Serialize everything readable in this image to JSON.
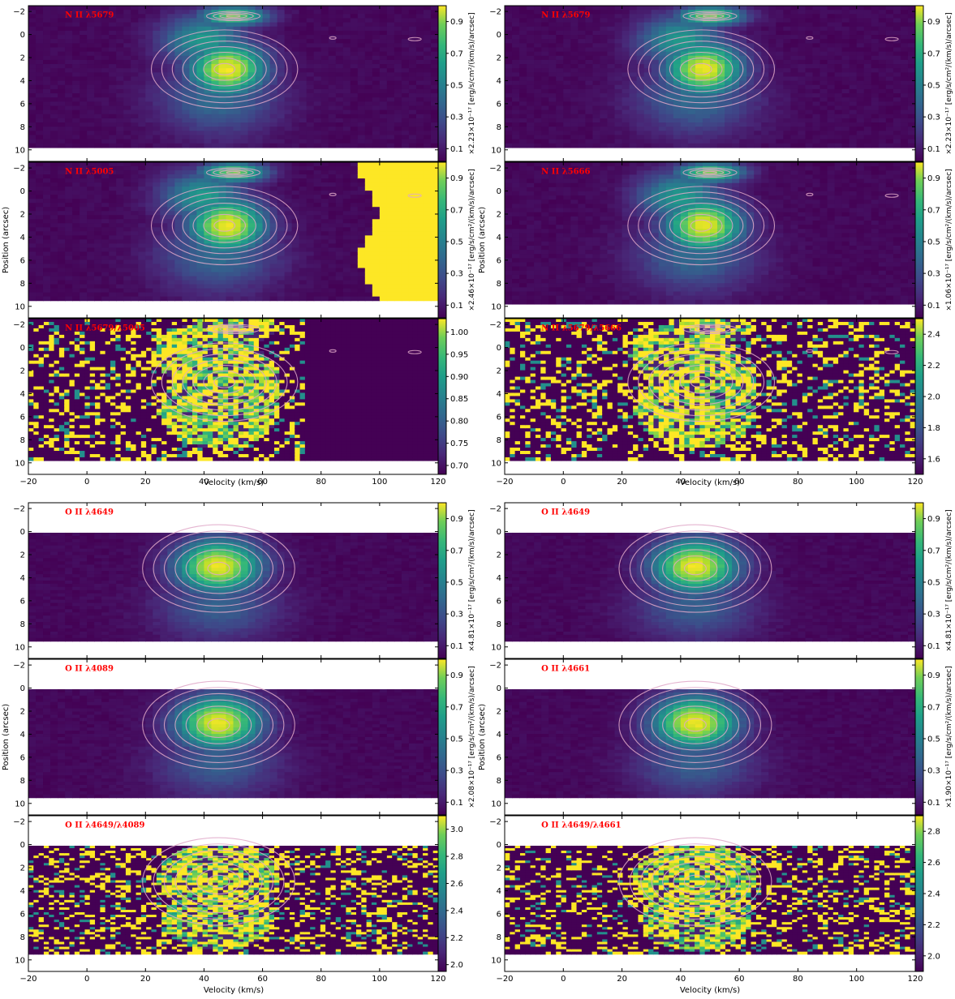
{
  "figure": {
    "velocity_label": "Velocity (km/s)",
    "position_label": "Position (arcsec)",
    "x_ticks": [
      "-20",
      "0",
      "20",
      "40",
      "60",
      "80",
      "100",
      "120"
    ],
    "y_ticks": [
      "-2",
      "0",
      "2",
      "4",
      "6",
      "8",
      "10"
    ]
  },
  "colors": {
    "viridis_low": "#440154",
    "viridis_mid": "#21918c",
    "viridis_high": "#fde725",
    "contour": "#e0a8c8",
    "label_red": "#ff0000"
  },
  "chart_data": [
    {
      "type": "heatmap",
      "line_label": "N II λ5679",
      "xlim": [
        -20,
        120
      ],
      "ylim": [
        -2.5,
        11
      ],
      "data_rows": [
        -2.5,
        9.8
      ],
      "cbar_label": "×2.23×10⁻¹⁷ [erg/s/cm²/(km/s)/arcsec]",
      "cbar_ticks": [
        "0.1",
        "0.3",
        "0.5",
        "0.7",
        "0.9"
      ],
      "cbar_range": [
        0.02,
        1.0
      ],
      "peaks": [
        {
          "v": 48,
          "p": 3.0,
          "value": 1.0
        },
        {
          "v": 50,
          "p": -1.6,
          "value": 0.8
        }
      ]
    },
    {
      "type": "heatmap",
      "line_label": "N II λ5679",
      "xlim": [
        -20,
        120
      ],
      "ylim": [
        -2.5,
        11
      ],
      "data_rows": [
        -2.5,
        9.8
      ],
      "cbar_label": "×2.23×10⁻¹⁷ [erg/s/cm²/(km/s)/arcsec]",
      "cbar_ticks": [
        "0.1",
        "0.3",
        "0.5",
        "0.7",
        "0.9"
      ],
      "cbar_range": [
        0.02,
        1.0
      ],
      "peaks": [
        {
          "v": 48,
          "p": 3.0,
          "value": 1.0
        },
        {
          "v": 50,
          "p": -1.6,
          "value": 0.8
        }
      ]
    },
    {
      "type": "heatmap",
      "line_label": "N II λ5005",
      "xlim": [
        -20,
        120
      ],
      "ylim": [
        -2.5,
        11
      ],
      "data_rows": [
        -2.5,
        9.5
      ],
      "cbar_label": "×2.46×10⁻¹⁷ [erg/s/cm²/(km/s)/arcsec]",
      "cbar_ticks": [
        "0.1",
        "0.3",
        "0.5",
        "0.7",
        "0.9"
      ],
      "cbar_range": [
        0.02,
        1.0
      ],
      "peaks": [
        {
          "v": 48,
          "p": 3.0,
          "value": 1.0
        },
        {
          "v": 50,
          "p": -1.6,
          "value": 0.8
        }
      ]
    },
    {
      "type": "heatmap",
      "line_label": "N II λ5666",
      "xlim": [
        -20,
        120
      ],
      "ylim": [
        -2.5,
        11
      ],
      "data_rows": [
        -2.5,
        9.8
      ],
      "cbar_label": "×1.06×10⁻¹⁷ [erg/s/cm²/(km/s)/arcsec]",
      "cbar_ticks": [
        "0.1",
        "0.3",
        "0.5",
        "0.7",
        "0.9"
      ],
      "cbar_range": [
        0.02,
        1.0
      ],
      "peaks": [
        {
          "v": 48,
          "p": 3.0,
          "value": 1.0
        },
        {
          "v": 50,
          "p": -1.6,
          "value": 0.8
        }
      ]
    },
    {
      "type": "heatmap",
      "line_label": "N II λ5679/λ5005",
      "xlim": [
        -20,
        120
      ],
      "ylim": [
        -2.5,
        11
      ],
      "data_rows": [
        -2.5,
        9.8
      ],
      "cbar_label": "",
      "cbar_ticks": [
        "0.70",
        "0.75",
        "0.80",
        "0.85",
        "0.90",
        "0.95",
        "1.00"
      ],
      "cbar_range": [
        0.68,
        1.03
      ],
      "ratio_extent": [
        -20,
        74
      ]
    },
    {
      "type": "heatmap",
      "line_label": "N II λ5679/λ5666",
      "xlim": [
        -20,
        120
      ],
      "ylim": [
        -2.5,
        11
      ],
      "data_rows": [
        -2.5,
        9.8
      ],
      "cbar_label": "",
      "cbar_ticks": [
        "1.6",
        "1.8",
        "2.0",
        "2.2",
        "2.4"
      ],
      "cbar_range": [
        1.5,
        2.5
      ],
      "ratio_extent": [
        -20,
        120
      ]
    },
    {
      "type": "heatmap",
      "line_label": "O II λ4649",
      "xlim": [
        -20,
        120
      ],
      "ylim": [
        -2.5,
        11
      ],
      "data_rows": [
        0.1,
        9.5
      ],
      "cbar_label": "×4.81×10⁻¹⁷ [erg/s/cm²/(km/s)/arcsec]",
      "cbar_ticks": [
        "0.1",
        "0.3",
        "0.5",
        "0.7",
        "0.9"
      ],
      "cbar_range": [
        0.02,
        1.0
      ],
      "peaks": [
        {
          "v": 45,
          "p": 3.0,
          "value": 1.0
        }
      ]
    },
    {
      "type": "heatmap",
      "line_label": "O II λ4649",
      "xlim": [
        -20,
        120
      ],
      "ylim": [
        -2.5,
        11
      ],
      "data_rows": [
        0.1,
        9.5
      ],
      "cbar_label": "×4.81×10⁻¹⁷ [erg/s/cm²/(km/s)/arcsec]",
      "cbar_ticks": [
        "0.1",
        "0.3",
        "0.5",
        "0.7",
        "0.9"
      ],
      "cbar_range": [
        0.02,
        1.0
      ],
      "peaks": [
        {
          "v": 45,
          "p": 3.0,
          "value": 1.0
        }
      ]
    },
    {
      "type": "heatmap",
      "line_label": "O II λ4089",
      "xlim": [
        -20,
        120
      ],
      "ylim": [
        -2.5,
        11
      ],
      "data_rows": [
        0.1,
        9.5
      ],
      "cbar_label": "×2.08×10⁻¹⁷ [erg/s/cm²/(km/s)/arcsec]",
      "cbar_ticks": [
        "0.1",
        "0.3",
        "0.5",
        "0.7",
        "0.9"
      ],
      "cbar_range": [
        0.02,
        1.0
      ],
      "peaks": [
        {
          "v": 45,
          "p": 3.0,
          "value": 1.0
        }
      ]
    },
    {
      "type": "heatmap",
      "line_label": "O II λ4661",
      "xlim": [
        -20,
        120
      ],
      "ylim": [
        -2.5,
        11
      ],
      "data_rows": [
        0.1,
        9.5
      ],
      "cbar_label": "×1.90×10⁻¹⁷ [erg/s/cm²/(km/s)/arcsec]",
      "cbar_ticks": [
        "0.1",
        "0.3",
        "0.5",
        "0.7",
        "0.9"
      ],
      "cbar_range": [
        0.02,
        1.0
      ],
      "peaks": [
        {
          "v": 45,
          "p": 3.0,
          "value": 1.0
        }
      ]
    },
    {
      "type": "heatmap",
      "line_label": "O II λ4649/λ4089",
      "xlim": [
        -20,
        120
      ],
      "ylim": [
        -2.5,
        11
      ],
      "data_rows": [
        0.1,
        9.5
      ],
      "cbar_label": "",
      "cbar_ticks": [
        "2.0",
        "2.2",
        "2.4",
        "2.6",
        "2.8",
        "3.0"
      ],
      "cbar_range": [
        1.95,
        3.1
      ],
      "ratio_extent": [
        -20,
        120
      ]
    },
    {
      "type": "heatmap",
      "line_label": "O II λ4649/λ4661",
      "xlim": [
        -20,
        120
      ],
      "ylim": [
        -2.5,
        11
      ],
      "data_rows": [
        0.1,
        9.5
      ],
      "cbar_label": "",
      "cbar_ticks": [
        "2.0",
        "2.2",
        "2.4",
        "2.6",
        "2.8"
      ],
      "cbar_range": [
        1.9,
        2.9
      ],
      "ratio_extent": [
        -20,
        120
      ]
    }
  ]
}
